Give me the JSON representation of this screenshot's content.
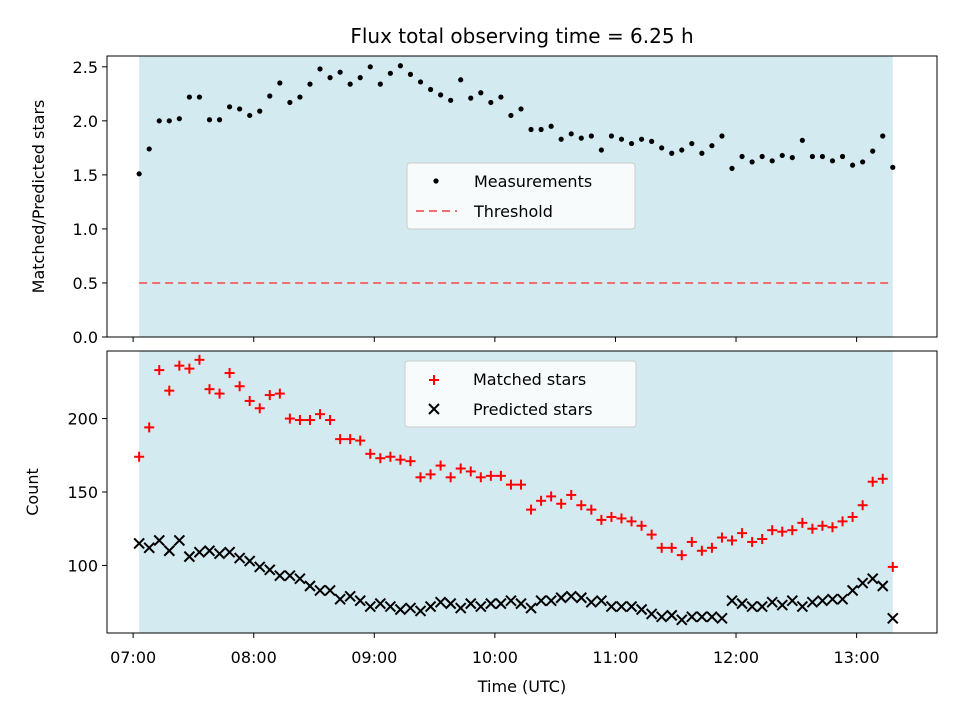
{
  "chart_data": [
    {
      "type": "scatter",
      "title": "Flux total observing time = 6.25 h",
      "xlabel": "",
      "ylabel": "Matched/Predicted stars",
      "xlim": [
        "06:47",
        "13:40"
      ],
      "ylim": [
        0,
        2.6
      ],
      "yticks": [
        "0.0",
        "0.5",
        "1.0",
        "1.5",
        "2.0",
        "2.5"
      ],
      "grid": false,
      "legend_position": "center-right",
      "shaded_span": {
        "start": "07:03",
        "end": "13:18",
        "color": "#d4eaf1"
      },
      "threshold": {
        "name": "Threshold",
        "value": 0.5,
        "color": "#f07070"
      },
      "series": [
        {
          "name": "Measurements",
          "marker": "dot",
          "color": "#000000",
          "x": [
            "07:03",
            "07:08",
            "07:13",
            "07:18",
            "07:23",
            "07:28",
            "07:33",
            "07:38",
            "07:43",
            "07:48",
            "07:53",
            "07:58",
            "08:03",
            "08:08",
            "08:13",
            "08:18",
            "08:23",
            "08:28",
            "08:33",
            "08:38",
            "08:43",
            "08:48",
            "08:53",
            "08:58",
            "09:03",
            "09:08",
            "09:13",
            "09:18",
            "09:23",
            "09:28",
            "09:33",
            "09:38",
            "09:43",
            "09:48",
            "09:53",
            "09:58",
            "10:03",
            "10:08",
            "10:13",
            "10:18",
            "10:23",
            "10:28",
            "10:33",
            "10:38",
            "10:43",
            "10:48",
            "10:53",
            "10:58",
            "11:03",
            "11:08",
            "11:13",
            "11:18",
            "11:23",
            "11:28",
            "11:33",
            "11:38",
            "11:43",
            "11:48",
            "11:53",
            "11:58",
            "12:03",
            "12:08",
            "12:13",
            "12:18",
            "12:23",
            "12:28",
            "12:33",
            "12:38",
            "12:43",
            "12:48",
            "12:53",
            "12:58",
            "13:03",
            "13:08",
            "13:13",
            "13:18"
          ],
          "y": [
            1.51,
            1.74,
            2.0,
            2.0,
            2.02,
            2.22,
            2.22,
            2.01,
            2.01,
            2.13,
            2.11,
            2.05,
            2.09,
            2.23,
            2.35,
            2.17,
            2.22,
            2.34,
            2.48,
            2.4,
            2.45,
            2.34,
            2.4,
            2.5,
            2.34,
            2.44,
            2.51,
            2.43,
            2.36,
            2.29,
            2.24,
            2.19,
            2.38,
            2.21,
            2.26,
            2.17,
            2.22,
            2.05,
            2.11,
            1.92,
            1.92,
            1.95,
            1.83,
            1.88,
            1.84,
            1.86,
            1.73,
            1.86,
            1.83,
            1.79,
            1.83,
            1.81,
            1.75,
            1.7,
            1.73,
            1.79,
            1.7,
            1.77,
            1.86,
            1.56,
            1.67,
            1.62,
            1.67,
            1.63,
            1.68,
            1.66,
            1.82,
            1.67,
            1.67,
            1.63,
            1.67,
            1.59,
            1.62,
            1.72,
            1.86,
            1.57
          ]
        }
      ]
    },
    {
      "type": "scatter",
      "title": "",
      "xlabel": "Time (UTC)",
      "ylabel": "Count",
      "xlim": [
        "06:47",
        "13:40"
      ],
      "ylim": [
        54,
        246
      ],
      "xticks": [
        "07:00",
        "08:00",
        "09:00",
        "10:00",
        "11:00",
        "12:00",
        "13:00"
      ],
      "yticks": [
        "100",
        "150",
        "200"
      ],
      "grid": false,
      "legend_position": "top-center",
      "shaded_span": {
        "start": "07:03",
        "end": "13:18",
        "color": "#d4eaf1"
      },
      "series": [
        {
          "name": "Matched stars",
          "marker": "plus",
          "color": "#ff0000",
          "x": [
            "07:03",
            "07:08",
            "07:13",
            "07:18",
            "07:23",
            "07:28",
            "07:33",
            "07:38",
            "07:43",
            "07:48",
            "07:53",
            "07:58",
            "08:03",
            "08:08",
            "08:13",
            "08:18",
            "08:23",
            "08:28",
            "08:33",
            "08:38",
            "08:43",
            "08:48",
            "08:53",
            "08:58",
            "09:03",
            "09:08",
            "09:13",
            "09:18",
            "09:23",
            "09:28",
            "09:33",
            "09:38",
            "09:43",
            "09:48",
            "09:53",
            "09:58",
            "10:03",
            "10:08",
            "10:13",
            "10:18",
            "10:23",
            "10:28",
            "10:33",
            "10:38",
            "10:43",
            "10:48",
            "10:53",
            "10:58",
            "11:03",
            "11:08",
            "11:13",
            "11:18",
            "11:23",
            "11:28",
            "11:33",
            "11:38",
            "11:43",
            "11:48",
            "11:53",
            "11:58",
            "12:03",
            "12:08",
            "12:13",
            "12:18",
            "12:23",
            "12:28",
            "12:33",
            "12:38",
            "12:43",
            "12:48",
            "12:53",
            "12:58",
            "13:03",
            "13:08",
            "13:13",
            "13:18"
          ],
          "y": [
            174,
            194,
            233,
            219,
            236,
            234,
            240,
            220,
            217,
            231,
            222,
            212,
            207,
            216,
            217,
            200,
            199,
            199,
            203,
            199,
            186,
            186,
            185,
            176,
            173,
            174,
            172,
            171,
            160,
            162,
            168,
            160,
            166,
            164,
            160,
            161,
            161,
            155,
            155,
            138,
            144,
            147,
            142,
            148,
            141,
            138,
            131,
            133,
            132,
            130,
            127,
            121,
            112,
            112,
            107,
            116,
            110,
            112,
            119,
            117,
            122,
            116,
            118,
            124,
            123,
            124,
            129,
            125,
            127,
            126,
            130,
            133,
            141,
            157,
            159,
            99
          ]
        },
        {
          "name": "Predicted stars",
          "marker": "x",
          "color": "#000000",
          "x": [
            "07:03",
            "07:08",
            "07:13",
            "07:18",
            "07:23",
            "07:28",
            "07:33",
            "07:38",
            "07:43",
            "07:48",
            "07:53",
            "07:58",
            "08:03",
            "08:08",
            "08:13",
            "08:18",
            "08:23",
            "08:28",
            "08:33",
            "08:38",
            "08:43",
            "08:48",
            "08:53",
            "08:58",
            "09:03",
            "09:08",
            "09:13",
            "09:18",
            "09:23",
            "09:28",
            "09:33",
            "09:38",
            "09:43",
            "09:48",
            "09:53",
            "09:58",
            "10:03",
            "10:08",
            "10:13",
            "10:18",
            "10:23",
            "10:28",
            "10:33",
            "10:38",
            "10:43",
            "10:48",
            "10:53",
            "10:58",
            "11:03",
            "11:08",
            "11:13",
            "11:18",
            "11:23",
            "11:28",
            "11:33",
            "11:38",
            "11:43",
            "11:48",
            "11:53",
            "11:58",
            "12:03",
            "12:08",
            "12:13",
            "12:18",
            "12:23",
            "12:28",
            "12:33",
            "12:38",
            "12:43",
            "12:48",
            "12:53",
            "12:58",
            "13:03",
            "13:08",
            "13:13",
            "13:18"
          ],
          "y": [
            115,
            112,
            117,
            110,
            117,
            106,
            109,
            110,
            108,
            109,
            105,
            103,
            99,
            97,
            93,
            93,
            91,
            86,
            83,
            83,
            77,
            79,
            76,
            72,
            74,
            72,
            70,
            71,
            69,
            72,
            75,
            74,
            71,
            74,
            72,
            74,
            74,
            76,
            74,
            71,
            76,
            76,
            78,
            79,
            78,
            75,
            76,
            72,
            72,
            72,
            70,
            67,
            65,
            66,
            63,
            65,
            65,
            65,
            64,
            76,
            74,
            72,
            72,
            75,
            73,
            76,
            72,
            75,
            76,
            77,
            77,
            83,
            88,
            91,
            86,
            64
          ]
        }
      ]
    }
  ]
}
